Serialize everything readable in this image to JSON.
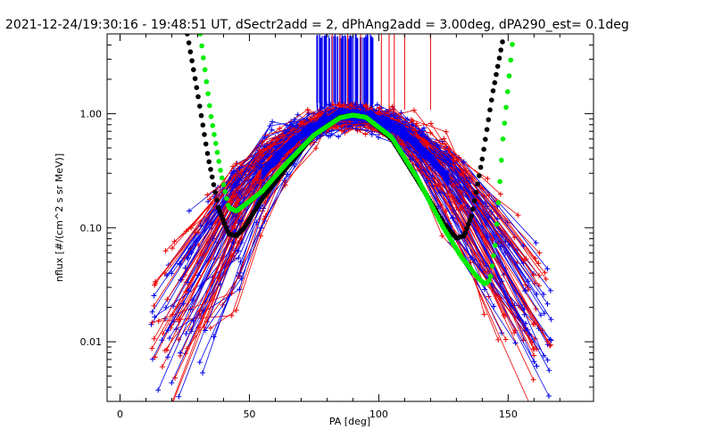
{
  "chart_data": {
    "type": "line",
    "title": "2021-12-24/19:30:16 - 19:48:51 UT, dSectr2add = 2, dPhAng2add = 3.00deg, dPA290_est=   0.1deg",
    "xlabel": "PA [deg]",
    "ylabel": "nflux [#/(cm^2 s sr MeV)]",
    "xlim": [
      -5,
      183
    ],
    "ylim": [
      0.003,
      5
    ],
    "yscale": "log",
    "grid": false,
    "x_ticks": [
      {
        "value": 0,
        "label": "0"
      },
      {
        "value": 50,
        "label": "50"
      },
      {
        "value": 100,
        "label": "100"
      },
      {
        "value": 150,
        "label": "150"
      }
    ],
    "y_ticks": [
      {
        "value": 0.01,
        "label": "0.01"
      },
      {
        "value": 0.1,
        "label": "0.10"
      },
      {
        "value": 1,
        "label": "1.00"
      }
    ],
    "series": [
      {
        "color": "#000000",
        "style": "thick-dotted",
        "x": [
          26,
          30,
          34,
          38,
          42,
          45,
          48,
          55,
          65,
          75,
          85,
          90,
          95,
          105,
          115,
          125,
          130,
          133,
          136,
          140,
          144,
          148
        ],
        "y": [
          5,
          1.5,
          0.42,
          0.15,
          0.088,
          0.085,
          0.1,
          0.18,
          0.35,
          0.65,
          0.93,
          0.97,
          0.93,
          0.6,
          0.26,
          0.11,
          0.081,
          0.085,
          0.13,
          0.4,
          1.5,
          4.5
        ]
      },
      {
        "color": "#00ee00",
        "style": "thick-dotted",
        "x": [
          31,
          35,
          39,
          42,
          45,
          50,
          55,
          65,
          75,
          85,
          90,
          95,
          105,
          115,
          125,
          132,
          138,
          141,
          143,
          145,
          148,
          152
        ],
        "y": [
          5,
          1.0,
          0.3,
          0.15,
          0.14,
          0.17,
          0.21,
          0.38,
          0.65,
          0.92,
          0.97,
          0.93,
          0.62,
          0.27,
          0.1,
          0.055,
          0.037,
          0.032,
          0.035,
          0.07,
          0.6,
          5
        ]
      }
    ],
    "scatter_red_color": "#ee0000",
    "scatter_blue_color": "#0000ee"
  }
}
